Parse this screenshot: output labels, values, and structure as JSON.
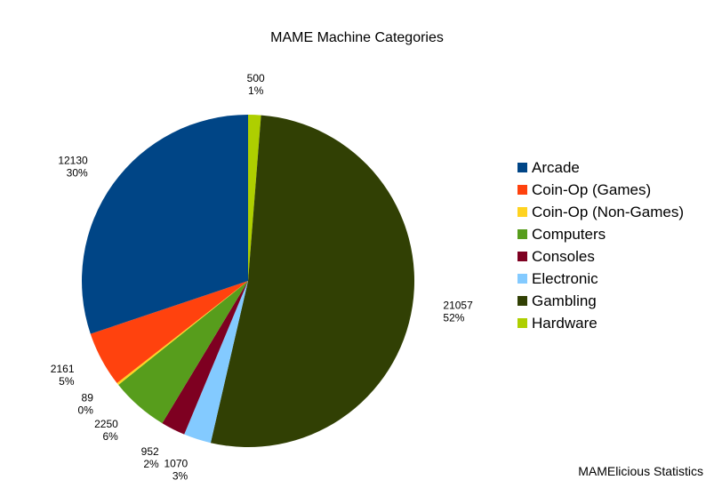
{
  "chart_data": {
    "type": "pie",
    "title": "MAME Machine Categories",
    "legend_position": "right",
    "slices": [
      {
        "label": "Arcade",
        "value": 12130,
        "percent": "30%",
        "color": "#004586"
      },
      {
        "label": "Coin-Op (Games)",
        "value": 2161,
        "percent": "5%",
        "color": "#ff420e"
      },
      {
        "label": "Coin-Op (Non-Games)",
        "value": 89,
        "percent": "0%",
        "color": "#ffd320"
      },
      {
        "label": "Computers",
        "value": 2250,
        "percent": "6%",
        "color": "#579d1c"
      },
      {
        "label": "Consoles",
        "value": 952,
        "percent": "2%",
        "color": "#7e0021"
      },
      {
        "label": "Electronic",
        "value": 1070,
        "percent": "3%",
        "color": "#83caff"
      },
      {
        "label": "Gambling",
        "value": 21057,
        "percent": "52%",
        "color": "#314004"
      },
      {
        "label": "Hardware",
        "value": 500,
        "percent": "1%",
        "color": "#aecf00"
      }
    ],
    "start_angle_deg": 0,
    "direction": "clockwise",
    "draw_order": [
      "Hardware",
      "Gambling",
      "Electronic",
      "Consoles",
      "Computers",
      "Coin-Op (Non-Games)",
      "Coin-Op (Games)",
      "Arcade"
    ]
  },
  "footer": {
    "credit": "MAMElicious Statistics"
  }
}
